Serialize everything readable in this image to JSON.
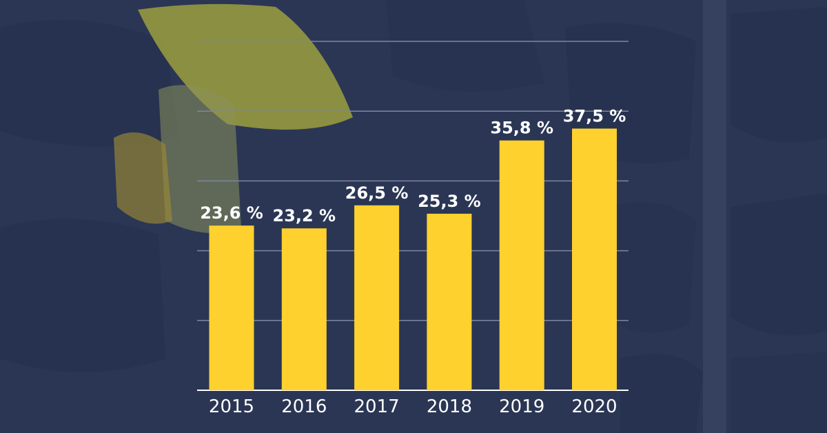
{
  "colors": {
    "background": "#2b3655",
    "bar": "#ffd12e",
    "gridline": "#7d879f",
    "text": "#ffffff"
  },
  "chart_data": {
    "type": "bar",
    "title": "",
    "xlabel": "",
    "ylabel": "",
    "categories": [
      "2015",
      "2016",
      "2017",
      "2018",
      "2019",
      "2020"
    ],
    "values": [
      23.6,
      23.2,
      26.5,
      25.3,
      35.8,
      37.5
    ],
    "data_labels": [
      "23,6 %",
      "23,2 %",
      "26,5 %",
      "25,3 %",
      "35,8 %",
      "37,5 %"
    ],
    "ylim": [
      0,
      50
    ],
    "y_tick_step": 10,
    "grid": true,
    "legend": "none"
  }
}
